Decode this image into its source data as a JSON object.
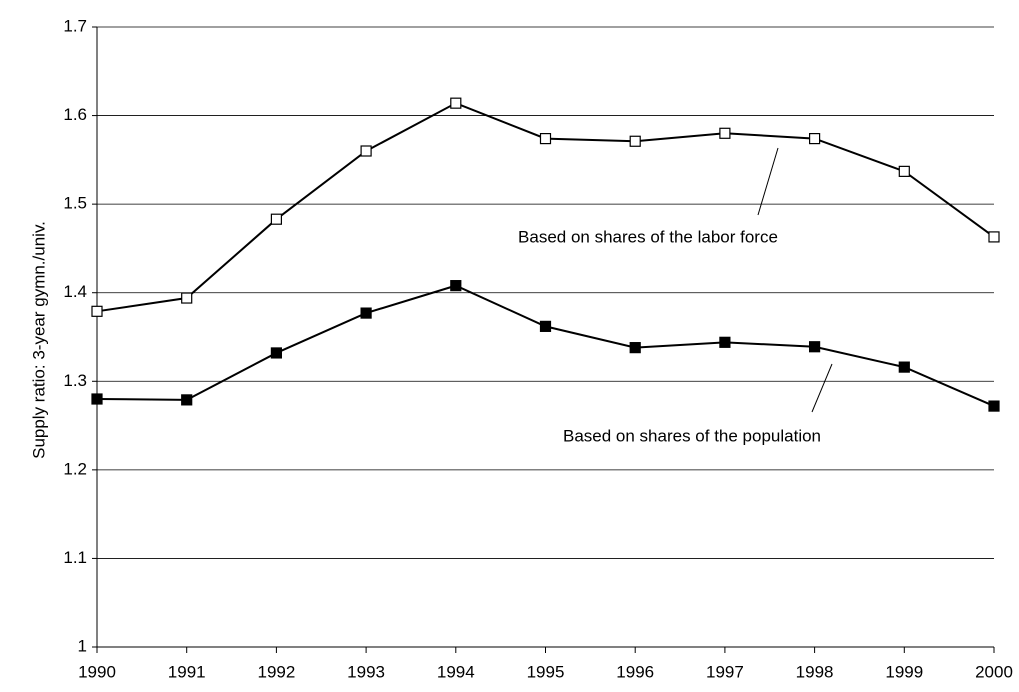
{
  "chart_data": {
    "type": "line",
    "y_label": "Supply ratio: 3-year gymn./univ.",
    "x": [
      1990,
      1991,
      1992,
      1993,
      1994,
      1995,
      1996,
      1997,
      1998,
      1999,
      2000
    ],
    "xlim": [
      1990,
      2000
    ],
    "xticks": [
      1990,
      1991,
      1992,
      1993,
      1994,
      1995,
      1996,
      1997,
      1998,
      1999,
      2000
    ],
    "ylim": [
      1,
      1.7
    ],
    "yticks": [
      1,
      1.1,
      1.2,
      1.3,
      1.4,
      1.5,
      1.6,
      1.7
    ],
    "grid": true,
    "series": [
      {
        "name": "Based on shares of the labor force",
        "color": "#000000",
        "marker_fill": "#ffffff",
        "values": [
          1.379,
          1.394,
          1.483,
          1.56,
          1.614,
          1.574,
          1.571,
          1.58,
          1.574,
          1.537,
          1.463
        ]
      },
      {
        "name": "Based on shares of the population",
        "color": "#000000",
        "marker_fill": "#000000",
        "values": [
          1.28,
          1.279,
          1.332,
          1.377,
          1.408,
          1.362,
          1.338,
          1.344,
          1.339,
          1.316,
          1.272
        ]
      }
    ]
  }
}
